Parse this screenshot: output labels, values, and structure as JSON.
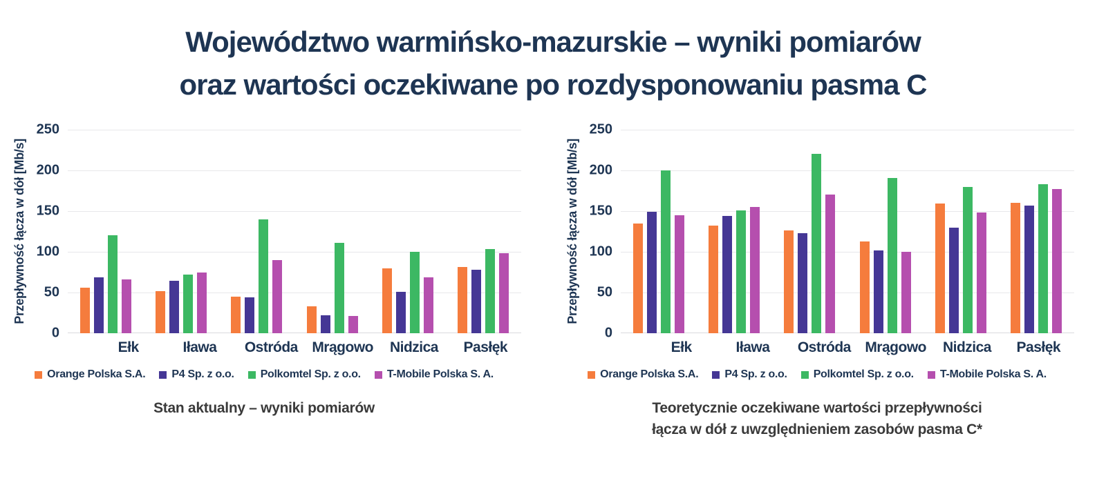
{
  "header": {
    "title_lines": [
      "Województwo warmińsko-mazurskie – wyniki pomiarów",
      "oraz wartości oczekiwane po rozdysponowaniu pasma C"
    ]
  },
  "colors": {
    "orange": "#F57C3D",
    "purple": "#453795",
    "green": "#3CB863",
    "magenta": "#B54FAE",
    "title_navy": "#1E3553",
    "caption_gray": "#3A3A3A",
    "gridline": "#E7E7EA"
  },
  "chart_data": [
    {
      "type": "bar",
      "caption_lines": [
        "Stan aktualny – wyniki pomiarów"
      ],
      "ylabel": "Przepływność łącza w dół [Mb/s]",
      "ylim": [
        0,
        250
      ],
      "yticks": [
        0,
        50,
        100,
        150,
        200,
        250
      ],
      "grid": true,
      "legend_position": "bottom",
      "categories": [
        "Ełk",
        "Iława",
        "Ostróda",
        "Mrągowo",
        "Nidzica",
        "Pasłęk"
      ],
      "series": [
        {
          "name": "Orange Polska S.A.",
          "color_key": "orange",
          "values": [
            56,
            52,
            45,
            33,
            80,
            81
          ]
        },
        {
          "name": "P4 Sp. z o.o.",
          "color_key": "purple",
          "values": [
            69,
            64,
            44,
            22,
            51,
            78
          ]
        },
        {
          "name": "Polkomtel Sp. z o.o.",
          "color_key": "green",
          "values": [
            120,
            72,
            140,
            111,
            100,
            103
          ]
        },
        {
          "name": "T-Mobile Polska S. A.",
          "color_key": "magenta",
          "values": [
            66,
            75,
            90,
            21,
            69,
            98
          ]
        }
      ]
    },
    {
      "type": "bar",
      "caption_lines": [
        "Teoretycznie oczekiwane wartości przepływności",
        "łącza w dół z uwzględnieniem zasobów pasma C*"
      ],
      "ylabel": "Przepływność łącza w dół [Mb/s]",
      "ylim": [
        0,
        250
      ],
      "yticks": [
        0,
        50,
        100,
        150,
        200,
        250
      ],
      "grid": true,
      "legend_position": "bottom",
      "categories": [
        "Ełk",
        "Iława",
        "Ostróda",
        "Mrągowo",
        "Nidzica",
        "Pasłęk"
      ],
      "series": [
        {
          "name": "Orange Polska S.A.",
          "color_key": "orange",
          "values": [
            135,
            132,
            126,
            113,
            159,
            160
          ]
        },
        {
          "name": "P4 Sp. z o.o.",
          "color_key": "purple",
          "values": [
            149,
            144,
            123,
            102,
            130,
            157
          ]
        },
        {
          "name": "Polkomtel Sp. z o.o.",
          "color_key": "green",
          "values": [
            200,
            151,
            220,
            191,
            180,
            183
          ]
        },
        {
          "name": "T-Mobile Polska S. A.",
          "color_key": "magenta",
          "values": [
            145,
            155,
            170,
            100,
            148,
            177
          ]
        }
      ]
    }
  ]
}
